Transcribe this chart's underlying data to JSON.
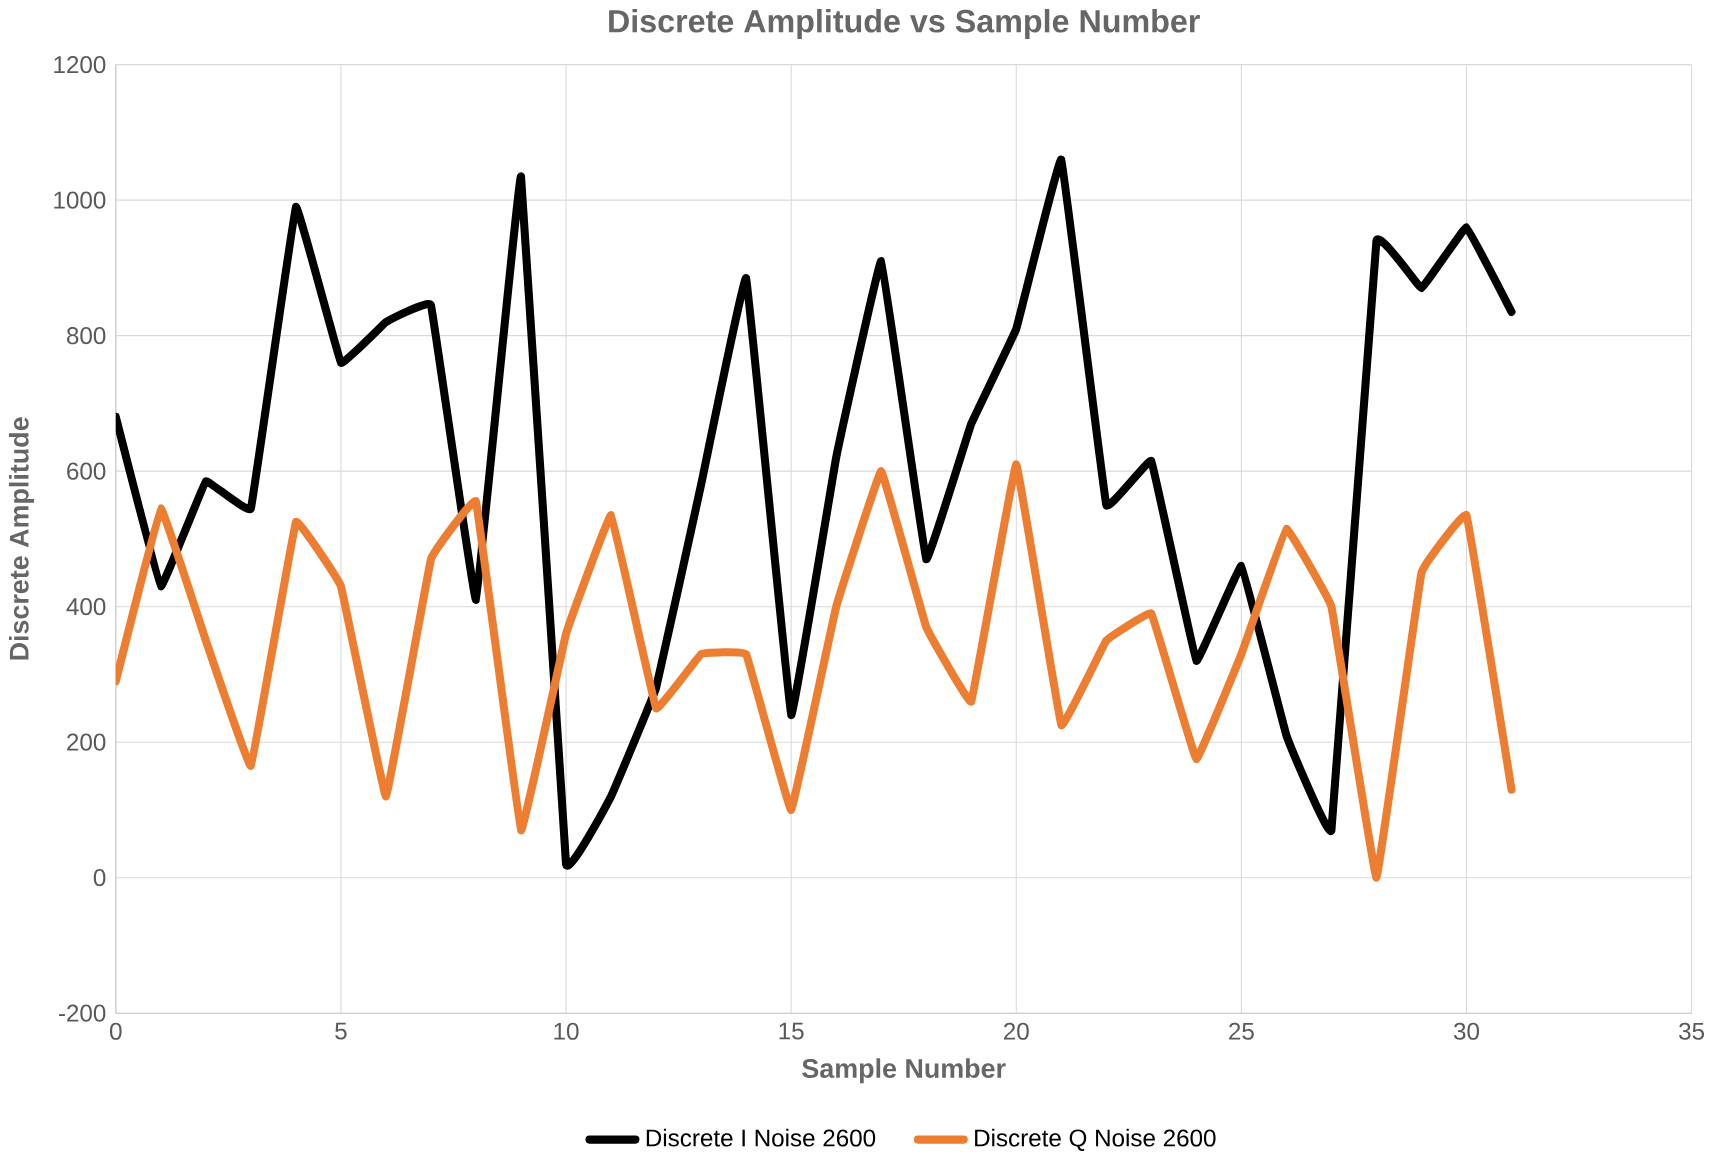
{
  "chart_data": {
    "type": "line",
    "title": "Discrete Amplitude vs Sample Number",
    "xlabel": "Sample Number",
    "ylabel": "Discrete Amplitude",
    "x": [
      0,
      1,
      2,
      3,
      4,
      5,
      6,
      7,
      8,
      9,
      10,
      11,
      12,
      13,
      14,
      15,
      16,
      17,
      18,
      19,
      20,
      21,
      22,
      23,
      24,
      25,
      26,
      27,
      28,
      29,
      30,
      31
    ],
    "series": [
      {
        "name": "Discrete I Noise 2600",
        "color": "#000000",
        "values": [
          680,
          430,
          585,
          545,
          990,
          760,
          820,
          845,
          410,
          1035,
          20,
          120,
          280,
          580,
          885,
          240,
          620,
          910,
          470,
          670,
          810,
          1060,
          550,
          615,
          320,
          460,
          210,
          70,
          940,
          870,
          960,
          835
        ]
      },
      {
        "name": "Discrete Q Noise 2600",
        "color": "#ed7d31",
        "values": [
          290,
          545,
          350,
          165,
          525,
          430,
          120,
          470,
          555,
          70,
          360,
          535,
          250,
          330,
          330,
          100,
          400,
          600,
          370,
          260,
          610,
          225,
          350,
          390,
          175,
          330,
          515,
          400,
          0,
          450,
          535,
          130
        ]
      }
    ],
    "xlim": [
      0,
      35
    ],
    "xticks": [
      0,
      5,
      10,
      15,
      20,
      25,
      30,
      35
    ],
    "ylim": [
      -200,
      1200
    ],
    "yticks": [
      -200,
      0,
      200,
      400,
      600,
      800,
      1000,
      1200
    ],
    "grid": true,
    "legend": "bottom",
    "marker": "none",
    "line_style": "solid"
  }
}
